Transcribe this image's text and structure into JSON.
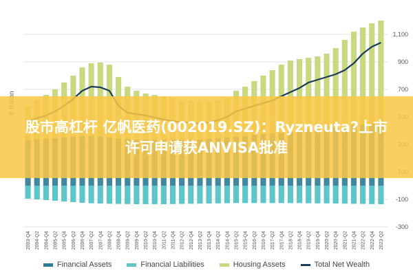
{
  "banner": {
    "headline": "股市高杠杆 亿帆医药(002019.SZ)：Ryzneuta?上市许可申请获ANVISA批准"
  },
  "chart_data": {
    "type": "area",
    "ylabel": "€ Billion",
    "ylim": [
      -300,
      1200
    ],
    "yticks": [
      1100,
      900,
      700,
      500,
      300,
      100,
      -100,
      -300
    ],
    "ytick_labels": [
      "1,100",
      "900",
      "700",
      "500",
      "300",
      "100",
      "-100",
      "-300"
    ],
    "grid": true,
    "legend_position": "bottom",
    "categories": [
      "2003-Q4",
      "2004-Q2",
      "2004-Q4",
      "2005-Q2",
      "2005-Q4",
      "2006-Q2",
      "2006-Q4",
      "2007-Q2",
      "2007-Q4",
      "2008-Q2",
      "2008-Q4",
      "2009-Q2",
      "2009-Q4",
      "2010-Q2",
      "2010-Q4",
      "2011-Q2",
      "2011-Q4",
      "2012-Q2",
      "2012-Q4",
      "2013-Q2",
      "2013-Q4",
      "2014-Q2",
      "2014-Q4",
      "2015-Q2",
      "2015-Q4",
      "2016-Q2",
      "2016-Q4",
      "2017-Q2",
      "2017-Q4",
      "2018-Q2",
      "2018-Q4",
      "2019-Q2",
      "2019-Q4",
      "2020-Q2",
      "2020-Q4",
      "2021-Q2",
      "2021-Q4",
      "2022-Q2",
      "2022-Q4",
      "2023-Q2"
    ],
    "series": [
      {
        "name": "Financial Assets",
        "color": "#2f7a94",
        "values": [
          330,
          335,
          340,
          345,
          350,
          355,
          360,
          362,
          358,
          350,
          340,
          340,
          335,
          335,
          335,
          335,
          333,
          333,
          333,
          335,
          340,
          345,
          350,
          355,
          360,
          368,
          375,
          380,
          385,
          390,
          395,
          400,
          405,
          410,
          420,
          430,
          440,
          445,
          450,
          455
        ]
      },
      {
        "name": "Financial Liabilities",
        "color": "#5cc6c9",
        "values": [
          -95,
          -100,
          -105,
          -110,
          -115,
          -120,
          -125,
          -128,
          -130,
          -132,
          -133,
          -134,
          -135,
          -135,
          -135,
          -135,
          -134,
          -133,
          -132,
          -131,
          -130,
          -129,
          -128,
          -127,
          -127,
          -127,
          -127,
          -127,
          -127,
          -127,
          -127,
          -128,
          -129,
          -129,
          -130,
          -131,
          -132,
          -133,
          -134,
          -135
        ]
      },
      {
        "name": "Housing Assets",
        "color": "#c8d97f",
        "values": [
          580,
          620,
          660,
          700,
          750,
          800,
          860,
          890,
          895,
          880,
          790,
          720,
          690,
          670,
          660,
          650,
          640,
          620,
          620,
          610,
          610,
          620,
          640,
          690,
          720,
          760,
          800,
          840,
          880,
          910,
          920,
          930,
          940,
          960,
          1000,
          1060,
          1120,
          1150,
          1180,
          1200
        ]
      },
      {
        "name": "Total Net Wealth",
        "color": "#1b3b5a",
        "line": true,
        "values": [
          470,
          490,
          510,
          540,
          580,
          630,
          690,
          720,
          715,
          690,
          580,
          530,
          520,
          510,
          495,
          480,
          470,
          460,
          460,
          450,
          460,
          475,
          500,
          540,
          560,
          580,
          600,
          620,
          650,
          680,
          710,
          750,
          770,
          790,
          810,
          840,
          890,
          960,
          1010,
          1040
        ]
      }
    ]
  }
}
